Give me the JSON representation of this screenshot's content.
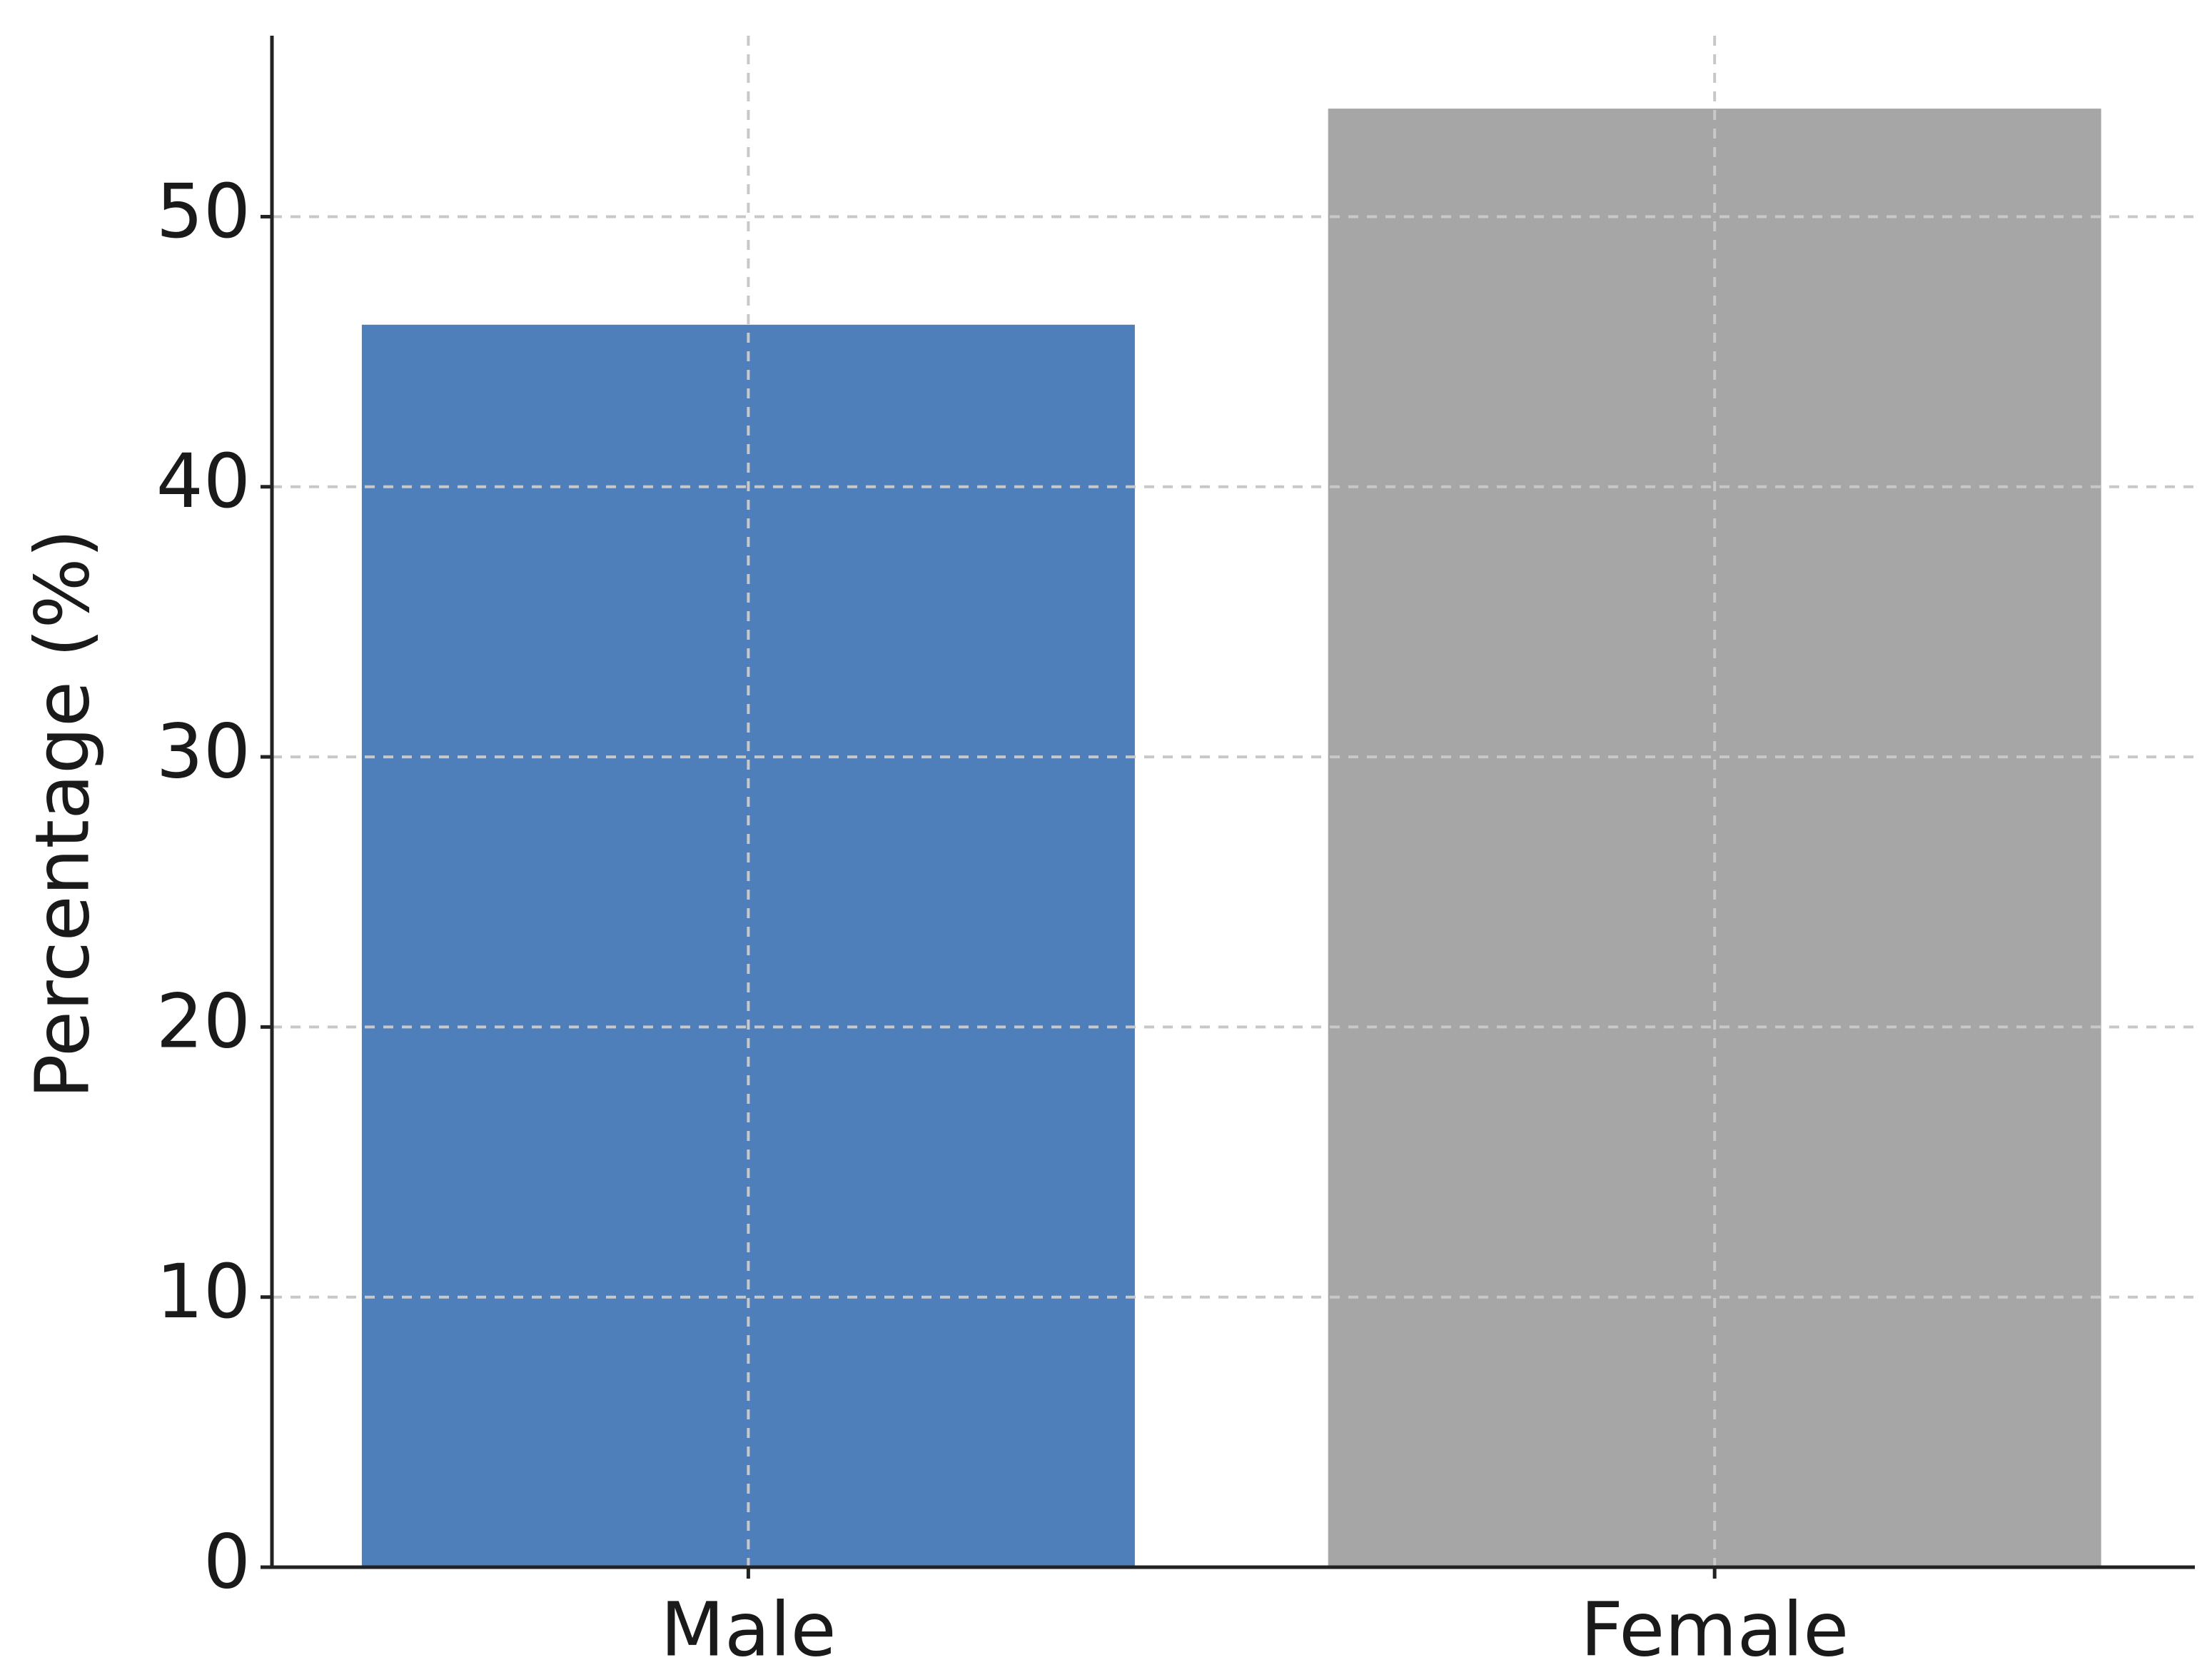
{
  "chart_data": {
    "type": "bar",
    "y_label": "Percentage (%)",
    "categories": [
      "Male",
      "Female"
    ],
    "values": [
      46,
      54
    ],
    "colors": [
      "#4f7fbb",
      "#a6a6a6"
    ],
    "ylim": [
      0,
      56.7
    ],
    "yticks": [
      0,
      10,
      20,
      30,
      40,
      50
    ],
    "grid": true
  }
}
